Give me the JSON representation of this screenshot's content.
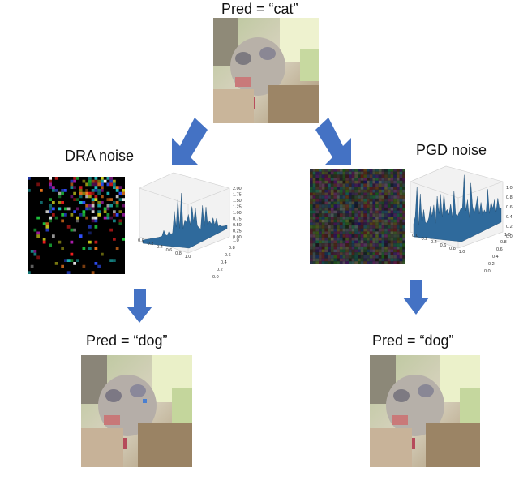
{
  "top": {
    "label": "Pred = “cat”"
  },
  "left": {
    "noise_label": "DRA noise",
    "pred_label": "Pred = “dog”",
    "zticks": [
      "2.00",
      "1.75",
      "1.50",
      "1.25",
      "1.00",
      "0.75",
      "0.50",
      "0.25",
      "0.00"
    ],
    "xticks": [
      "0.0",
      "0.2",
      "0.4",
      "0.6",
      "0.8",
      "1.0"
    ],
    "yticks": [
      "0.0",
      "0.2",
      "0.4",
      "0.6",
      "0.8",
      "1.0"
    ]
  },
  "right": {
    "noise_label": "PGD noise",
    "pred_label": "Pred = “dog”",
    "zticks": [
      "1.0",
      "0.8",
      "0.6",
      "0.4",
      "0.2",
      "0.0"
    ],
    "xticks": [
      "0.0",
      "0.2",
      "0.4",
      "0.6",
      "0.8",
      "1.0"
    ],
    "yticks": [
      "0.0",
      "0.2",
      "0.4",
      "0.6",
      "0.8",
      "1.0"
    ]
  },
  "colors": {
    "arrow": "#4472c4",
    "surface": "#2f6a9c"
  }
}
